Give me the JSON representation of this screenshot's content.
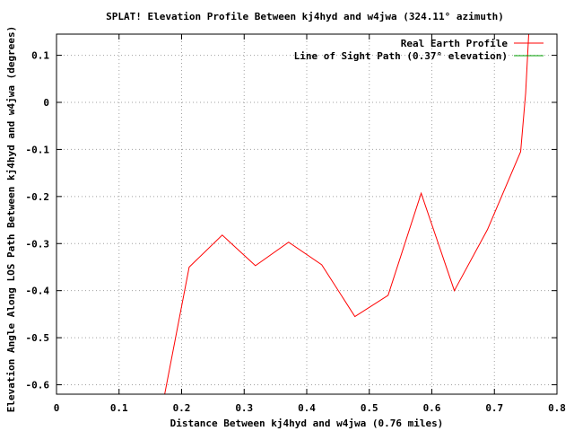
{
  "chart_data": {
    "type": "line",
    "title": "SPLAT! Elevation Profile Between kj4hyd and w4jwa (324.11° azimuth)",
    "xlabel": "Distance Between kj4hyd and w4jwa (0.76 miles)",
    "ylabel": "Elevation Angle Along LOS Path Between kj4hyd and w4jwa (degrees)",
    "xlim": [
      0,
      0.8
    ],
    "ylim": [
      -0.62,
      0.145
    ],
    "x_ticks": [
      0,
      0.1,
      0.2,
      0.3,
      0.4,
      0.5,
      0.6,
      0.7,
      0.8
    ],
    "x_tick_labels": [
      "0",
      "0.1",
      "0.2",
      "0.3",
      "0.4",
      "0.5",
      "0.6",
      "0.7",
      "0.8"
    ],
    "y_ticks": [
      0.1,
      0,
      -0.1,
      -0.2,
      -0.3,
      -0.4,
      -0.5,
      -0.6
    ],
    "y_tick_labels": [
      "0.1",
      "0",
      "-0.1",
      "-0.2",
      "-0.3",
      "-0.4",
      "-0.5",
      "-0.6"
    ],
    "grid": true,
    "legend_position": "top-right",
    "series": [
      {
        "name": "Real Earth Profile",
        "color": "#ff0000",
        "x": [
          0.17,
          0.212,
          0.265,
          0.318,
          0.371,
          0.424,
          0.477,
          0.53,
          0.583,
          0.636,
          0.689,
          0.742,
          0.75,
          0.757
        ],
        "values": [
          -0.64,
          -0.35,
          -0.282,
          -0.347,
          -0.297,
          -0.345,
          -0.455,
          -0.41,
          -0.193,
          -0.4,
          -0.27,
          -0.105,
          0.02,
          0.2
        ]
      },
      {
        "name": "Line of Sight Path (0.37° elevation)",
        "color": "#00a000",
        "x": [],
        "values": []
      }
    ]
  }
}
